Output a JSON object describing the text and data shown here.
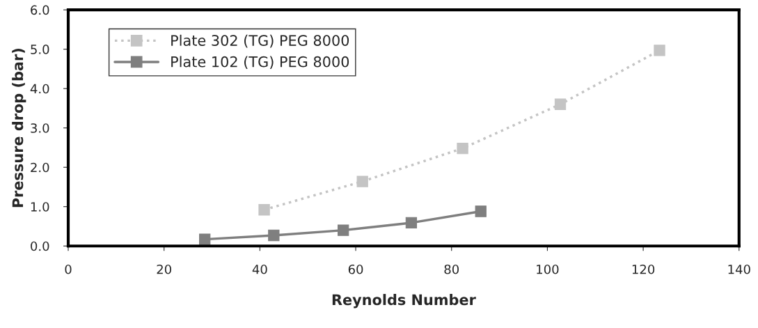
{
  "chart_data": {
    "type": "line",
    "xlabel": "Reynolds Number",
    "ylabel": "Pressure drop (bar)",
    "xlim": [
      0,
      140
    ],
    "xticks": [
      0,
      20,
      40,
      60,
      80,
      100,
      120,
      140
    ],
    "ylim": [
      0,
      6
    ],
    "yticks": [
      {
        "value": 0,
        "label": "0.0"
      },
      {
        "value": 1,
        "label": "1.0"
      },
      {
        "value": 2,
        "label": "2.0"
      },
      {
        "value": 3,
        "label": "3.0"
      },
      {
        "value": 4,
        "label": "4.0"
      },
      {
        "value": 5,
        "label": "5.0"
      },
      {
        "value": 6,
        "label": "6.0"
      }
    ],
    "grid": false,
    "legend": "top left",
    "marker": "square",
    "series": [
      {
        "name": "Plate 302 (TG) PEG 8000",
        "color": "#c4c4c4",
        "line_style": "dotted",
        "x": [
          40.9,
          61.4,
          82.3,
          102.7,
          123.4
        ],
        "values": [
          0.92,
          1.64,
          2.48,
          3.6,
          4.97
        ]
      },
      {
        "name": "Plate 102 (TG) PEG 8000",
        "color": "#7f7f7f",
        "line_style": "solid",
        "x": [
          28.5,
          42.9,
          57.4,
          71.6,
          86.1
        ],
        "values": [
          0.17,
          0.27,
          0.4,
          0.59,
          0.88
        ]
      }
    ]
  }
}
